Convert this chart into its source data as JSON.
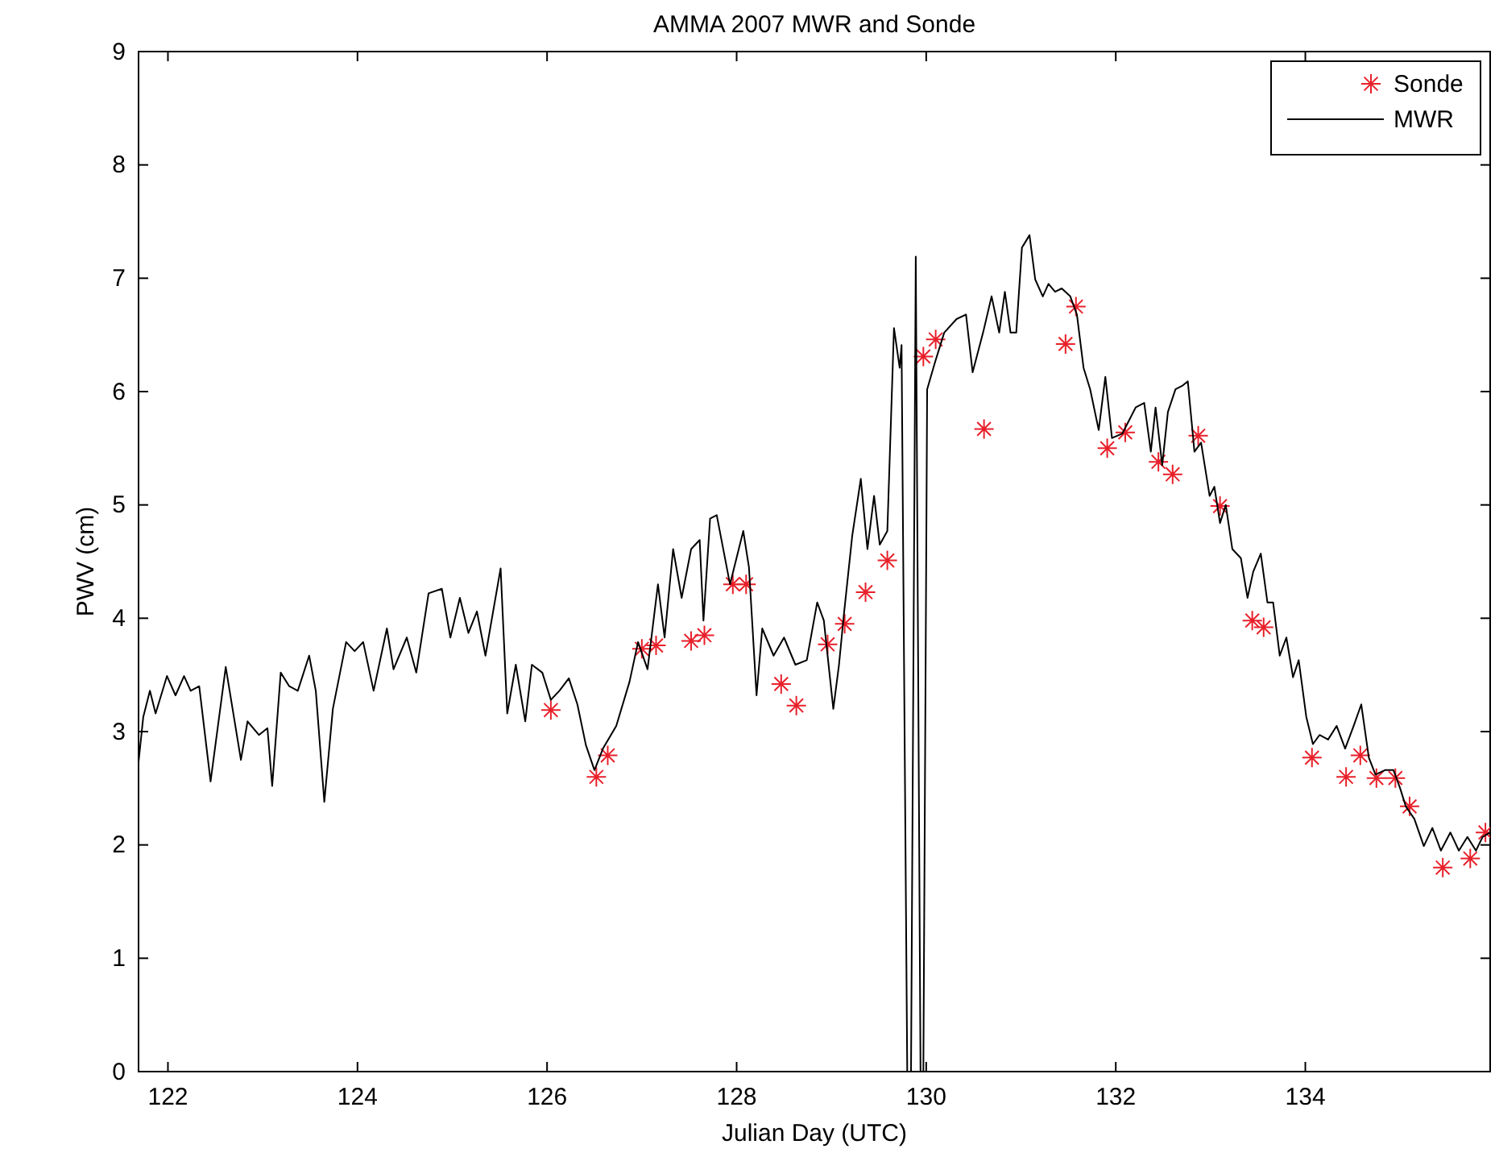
{
  "chart_data": {
    "type": "line",
    "title": "AMMA 2007 MWR and Sonde",
    "xlabel": "Julian Day (UTC)",
    "ylabel": "PWV (cm)",
    "xlim": [
      121.69,
      135.95
    ],
    "ylim": [
      0,
      9
    ],
    "xticks": [
      122,
      124,
      126,
      128,
      130,
      132,
      134
    ],
    "yticks": [
      0,
      1,
      2,
      3,
      4,
      5,
      6,
      7,
      8,
      9
    ],
    "grid": false,
    "legend": "top right",
    "series": [
      {
        "name": "Sonde",
        "type": "scatter",
        "marker": "cross",
        "color": "#e8202a",
        "x": [
          126.04,
          126.52,
          126.64,
          127.0,
          127.15,
          127.52,
          127.66,
          127.96,
          128.1,
          128.47,
          128.63,
          128.96,
          129.14,
          129.36,
          129.59,
          129.97,
          130.1,
          130.61,
          131.47,
          131.58,
          131.91,
          132.1,
          132.45,
          132.6,
          132.87,
          133.1,
          133.44,
          133.56,
          134.07,
          134.43,
          134.58,
          134.75,
          134.95,
          135.1,
          135.45,
          135.74,
          135.9
        ],
        "values": [
          3.19,
          2.6,
          2.79,
          3.73,
          3.76,
          3.8,
          3.85,
          4.3,
          4.3,
          3.42,
          3.23,
          3.77,
          3.95,
          4.23,
          4.51,
          6.31,
          6.46,
          5.67,
          6.42,
          6.75,
          5.5,
          5.64,
          5.38,
          5.27,
          5.61,
          4.99,
          3.98,
          3.92,
          2.77,
          2.6,
          2.79,
          2.59,
          2.59,
          2.34,
          1.8,
          1.88,
          2.11
        ]
      },
      {
        "name": "MWR",
        "type": "line",
        "marker": "none",
        "line_style": "solid",
        "color": "#000000",
        "x": [
          121.69,
          121.74,
          121.81,
          121.87,
          121.99,
          122.08,
          122.17,
          122.24,
          122.33,
          122.45,
          122.61,
          122.77,
          122.84,
          122.96,
          123.05,
          123.1,
          123.19,
          123.28,
          123.37,
          123.49,
          123.56,
          123.65,
          123.74,
          123.88,
          123.97,
          124.06,
          124.17,
          124.31,
          124.38,
          124.52,
          124.62,
          124.75,
          124.89,
          124.98,
          125.08,
          125.17,
          125.26,
          125.35,
          125.51,
          125.58,
          125.67,
          125.77,
          125.84,
          125.95,
          126.04,
          126.13,
          126.23,
          126.32,
          126.41,
          126.5,
          126.59,
          126.73,
          126.87,
          126.96,
          127.06,
          127.17,
          127.24,
          127.33,
          127.42,
          127.52,
          127.61,
          127.65,
          127.72,
          127.79,
          127.93,
          128.07,
          128.13,
          128.21,
          128.27,
          128.39,
          128.5,
          128.62,
          128.74,
          128.85,
          128.92,
          129.02,
          129.08,
          129.13,
          129.22,
          129.31,
          129.38,
          129.45,
          129.51,
          129.59,
          129.66,
          129.72,
          129.74,
          129.8,
          129.84,
          129.89,
          129.94,
          129.97,
          130.01,
          130.09,
          130.19,
          130.32,
          130.42,
          130.49,
          130.6,
          130.69,
          130.77,
          130.83,
          130.89,
          130.95,
          131.01,
          131.09,
          131.15,
          131.23,
          131.29,
          131.36,
          131.43,
          131.52,
          131.59,
          131.66,
          131.73,
          131.82,
          131.89,
          131.96,
          132.07,
          132.21,
          132.3,
          132.37,
          132.42,
          132.49,
          132.55,
          132.63,
          132.7,
          132.76,
          132.83,
          132.9,
          132.99,
          133.04,
          133.1,
          133.16,
          133.23,
          133.32,
          133.39,
          133.45,
          133.53,
          133.6,
          133.66,
          133.73,
          133.8,
          133.87,
          133.93,
          134.01,
          134.08,
          134.15,
          134.24,
          134.33,
          134.42,
          134.51,
          134.59,
          134.67,
          134.74,
          134.84,
          134.93,
          135.0,
          135.06,
          135.15,
          135.25,
          135.34,
          135.43,
          135.53,
          135.62,
          135.71,
          135.8,
          135.87,
          135.95
        ],
        "values": [
          2.73,
          3.13,
          3.36,
          3.16,
          3.49,
          3.32,
          3.49,
          3.36,
          3.4,
          2.56,
          3.57,
          2.75,
          3.09,
          2.97,
          3.03,
          2.52,
          3.52,
          3.4,
          3.36,
          3.67,
          3.36,
          2.38,
          3.2,
          3.79,
          3.71,
          3.79,
          3.36,
          3.91,
          3.55,
          3.83,
          3.52,
          4.22,
          4.26,
          3.83,
          4.18,
          3.87,
          4.06,
          3.67,
          4.44,
          3.16,
          3.59,
          3.09,
          3.59,
          3.52,
          3.28,
          3.36,
          3.47,
          3.24,
          2.88,
          2.66,
          2.85,
          3.05,
          3.44,
          3.79,
          3.55,
          4.3,
          3.83,
          4.61,
          4.18,
          4.61,
          4.69,
          3.98,
          4.88,
          4.91,
          4.3,
          4.77,
          4.45,
          3.32,
          3.91,
          3.67,
          3.83,
          3.59,
          3.63,
          4.14,
          3.98,
          3.2,
          3.59,
          4.02,
          4.73,
          5.23,
          4.61,
          5.08,
          4.65,
          4.77,
          6.56,
          6.21,
          6.41,
          0,
          0,
          7.19,
          0,
          0,
          6.02,
          6.25,
          6.52,
          6.64,
          6.68,
          6.17,
          6.52,
          6.84,
          6.52,
          6.88,
          6.52,
          6.52,
          7.27,
          7.38,
          6.99,
          6.84,
          6.95,
          6.88,
          6.91,
          6.84,
          6.68,
          6.21,
          6.02,
          5.66,
          6.13,
          5.59,
          5.63,
          5.86,
          5.9,
          5.47,
          5.86,
          5.35,
          5.82,
          6.02,
          6.05,
          6.09,
          5.47,
          5.55,
          5.08,
          5.16,
          4.84,
          5.0,
          4.61,
          4.53,
          4.18,
          4.41,
          4.57,
          4.14,
          4.14,
          3.67,
          3.83,
          3.48,
          3.63,
          3.13,
          2.89,
          2.97,
          2.93,
          3.05,
          2.85,
          3.05,
          3.24,
          2.77,
          2.62,
          2.66,
          2.66,
          2.5,
          2.34,
          2.23,
          1.99,
          2.15,
          1.95,
          2.11,
          1.95,
          2.07,
          1.95,
          2.07,
          2.11
        ]
      }
    ]
  }
}
